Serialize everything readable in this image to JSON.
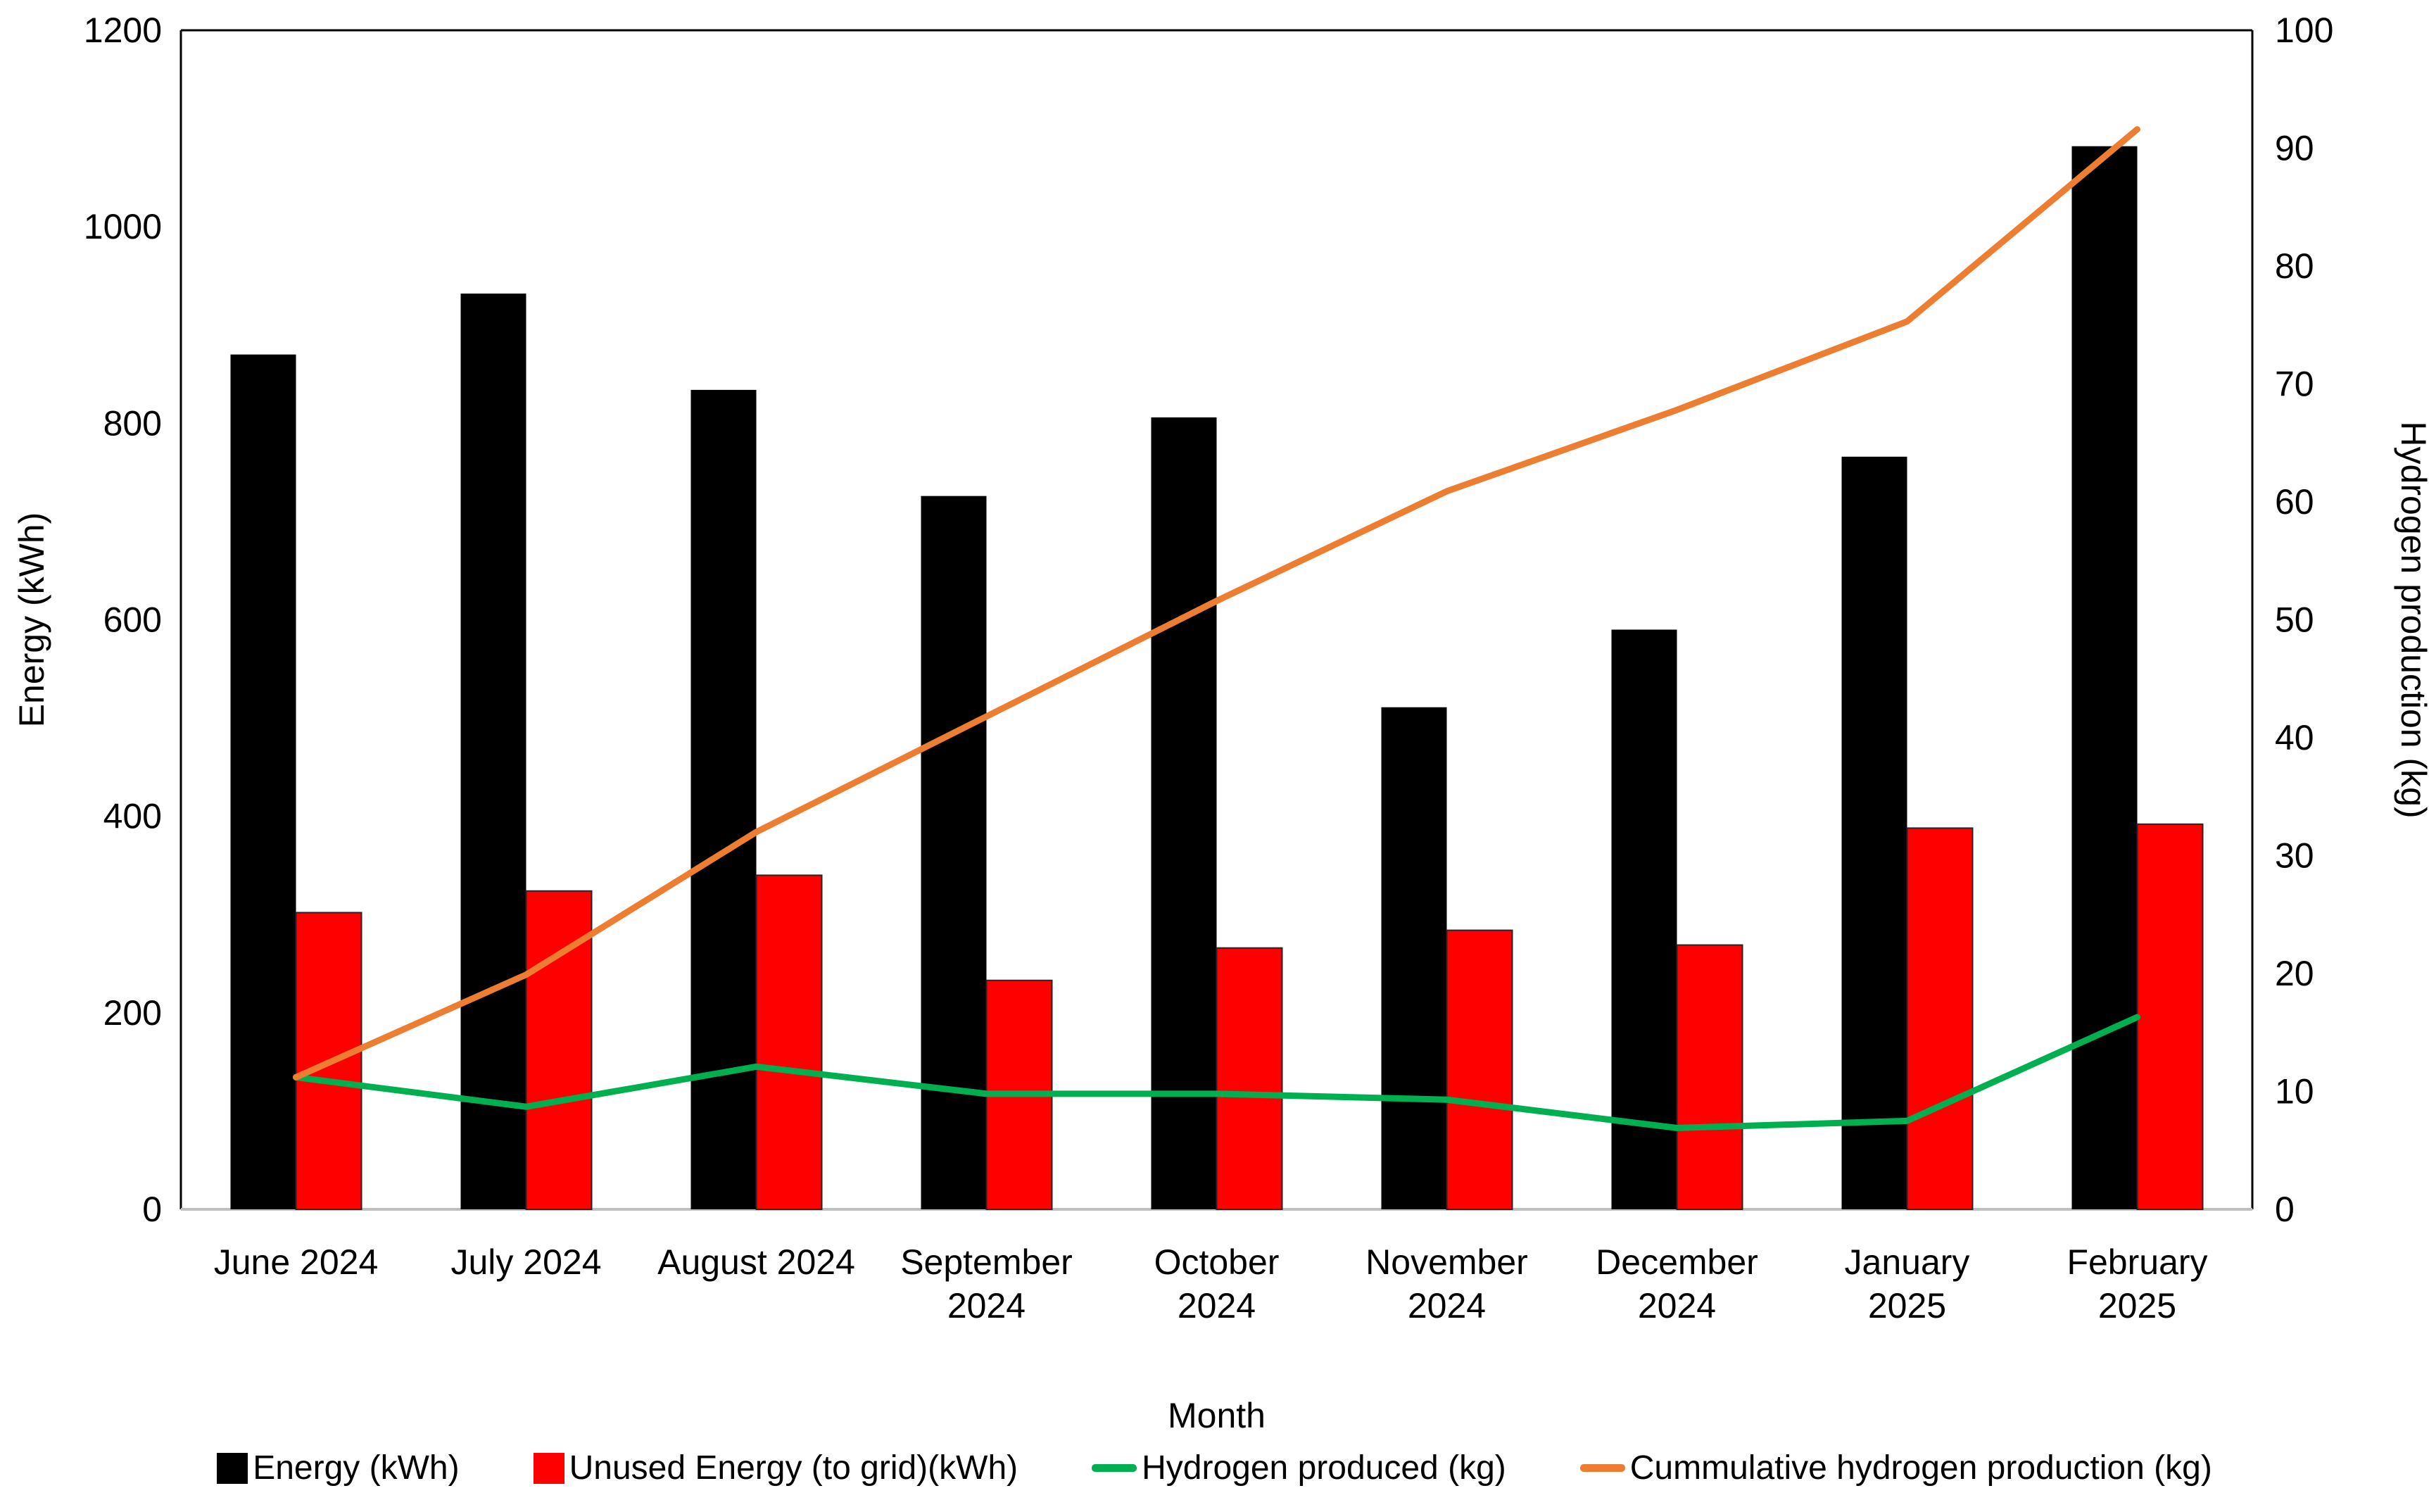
{
  "chart_data": {
    "type": "bar",
    "subtype": "combo-bar-line-dual-axis",
    "title": "",
    "categories": [
      "June 2024",
      "July 2024",
      "August 2024",
      "September 2024",
      "October 2024",
      "November 2024",
      "December 2024",
      "January 2025",
      "February 2025"
    ],
    "category_label_lines": [
      [
        "June 2024"
      ],
      [
        "July 2024"
      ],
      [
        "August 2024"
      ],
      [
        "September",
        "2024"
      ],
      [
        "October",
        "2024"
      ],
      [
        "November",
        "2024"
      ],
      [
        "December",
        "2024"
      ],
      [
        "January",
        "2025"
      ],
      [
        "February",
        "2025"
      ]
    ],
    "series": [
      {
        "name": "Energy (kWh)",
        "type": "bar",
        "axis": "left",
        "color": "#000000",
        "values": [
          870,
          932,
          834,
          726,
          806,
          511,
          590,
          766,
          1082
        ]
      },
      {
        "name": "Unused Energy (to grid)(kWh)",
        "type": "bar",
        "axis": "left",
        "color": "#FF0000",
        "values": [
          302,
          324,
          340,
          233,
          266,
          284,
          269,
          388,
          392
        ]
      },
      {
        "name": "Hydrogen produced (kg)",
        "type": "line",
        "axis": "right",
        "color": "#00B050",
        "values": [
          11.2,
          8.7,
          12.1,
          9.8,
          9.8,
          9.3,
          6.9,
          7.5,
          16.3
        ]
      },
      {
        "name": "Cummulative hydrogen production (kg)",
        "type": "line",
        "axis": "right",
        "color": "#ED7D31",
        "values": [
          11.2,
          19.9,
          32.0,
          41.8,
          51.6,
          60.9,
          67.8,
          75.3,
          91.6
        ]
      }
    ],
    "xlabel": "Month",
    "left_axis": {
      "label": "Energy (kWh)",
      "min": 0,
      "max": 1200,
      "step": 200,
      "ticks": [
        0,
        200,
        400,
        600,
        800,
        1000,
        1200
      ]
    },
    "right_axis": {
      "label": "Hydrogen production (kg)",
      "min": 0,
      "max": 100,
      "step": 10,
      "ticks": [
        0,
        10,
        20,
        30,
        40,
        50,
        60,
        70,
        80,
        90,
        100
      ]
    },
    "grid": false,
    "legend_position": "bottom",
    "plot_border_color": "#000000",
    "baseline_color": "#BFBFBF",
    "background_color": "#FFFFFF"
  }
}
